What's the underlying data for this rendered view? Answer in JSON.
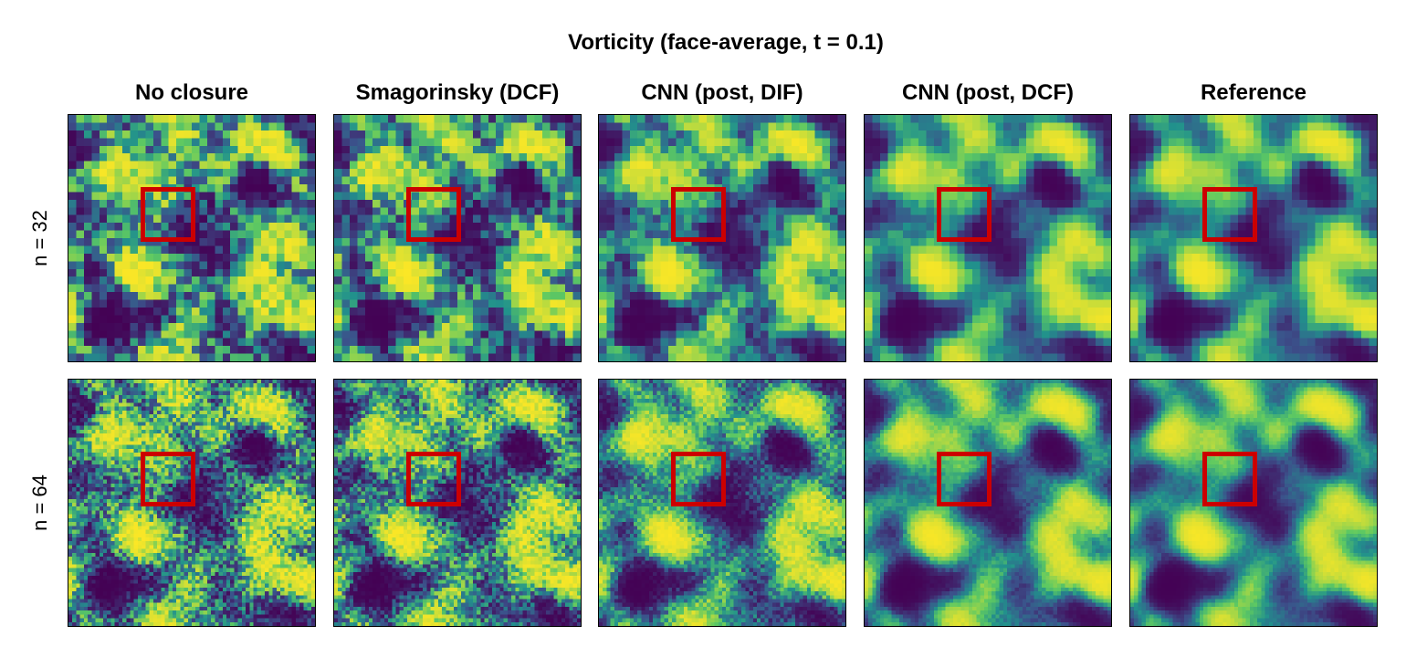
{
  "chart_data": {
    "type": "heatmap",
    "title": "Vorticity (face-average, t = 0.1)",
    "columns": [
      "No closure",
      "Smagorinsky (DCF)",
      "CNN (post, DIF)",
      "CNN (post, DCF)",
      "Reference"
    ],
    "rows": [
      "n = 32",
      "n = 64"
    ],
    "grid_resolution": [
      32,
      64
    ],
    "colormap": "viridis",
    "colormap_colors": [
      "#440154",
      "#3b528b",
      "#21918c",
      "#5ec962",
      "#fde725"
    ],
    "highlight_color": "#cc0000",
    "highlight_box": "red square marking the same region in every panel",
    "axes_ticks": "none",
    "grid": false
  }
}
